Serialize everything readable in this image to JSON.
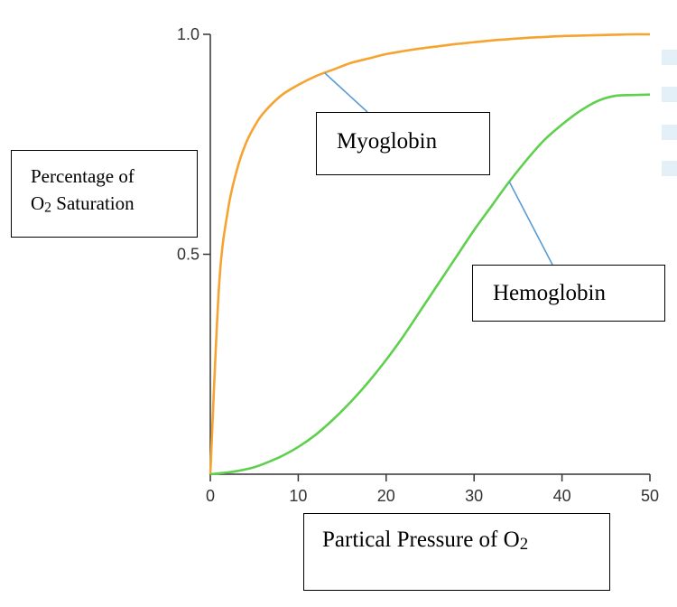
{
  "chart_data": {
    "type": "line",
    "xlabel": "Partical Pressure of O2",
    "ylabel_line1": "Percentage of",
    "ylabel_line2": "O2 Saturation",
    "xlim": [
      0,
      50
    ],
    "ylim": [
      0,
      1.0
    ],
    "x_ticks": [
      "0",
      "10",
      "20",
      "30",
      "40",
      "50"
    ],
    "y_ticks": [
      "0.5",
      "1.0"
    ],
    "x": [
      0,
      1,
      2,
      3,
      4,
      5,
      6,
      8,
      10,
      12,
      14,
      16,
      18,
      20,
      22,
      24,
      26,
      28,
      30,
      32,
      34,
      36,
      38,
      40,
      42,
      44,
      46,
      48,
      50
    ],
    "series": [
      {
        "name": "Myoglobin",
        "color": "#f5a431",
        "values": [
          0,
          0.43,
          0.6,
          0.69,
          0.75,
          0.79,
          0.82,
          0.86,
          0.885,
          0.905,
          0.92,
          0.935,
          0.945,
          0.955,
          0.962,
          0.968,
          0.973,
          0.978,
          0.982,
          0.986,
          0.989,
          0.992,
          0.994,
          0.996,
          0.997,
          0.998,
          0.999,
          1.0,
          1.0
        ]
      },
      {
        "name": "Hemoglobin",
        "color": "#5fd04e",
        "values": [
          0,
          0.002,
          0.004,
          0.007,
          0.011,
          0.016,
          0.023,
          0.04,
          0.062,
          0.09,
          0.125,
          0.165,
          0.21,
          0.26,
          0.315,
          0.375,
          0.435,
          0.495,
          0.555,
          0.61,
          0.665,
          0.715,
          0.76,
          0.795,
          0.825,
          0.848,
          0.86,
          0.862,
          0.863
        ]
      }
    ],
    "annotations": [
      {
        "text": "Myoglobin",
        "series": "Myoglobin",
        "x": 13
      },
      {
        "text": "Hemoglobin",
        "series": "Hemoglobin",
        "x": 34
      }
    ],
    "leader_color": "#5b9bd5",
    "grid": false,
    "legend": "none"
  }
}
